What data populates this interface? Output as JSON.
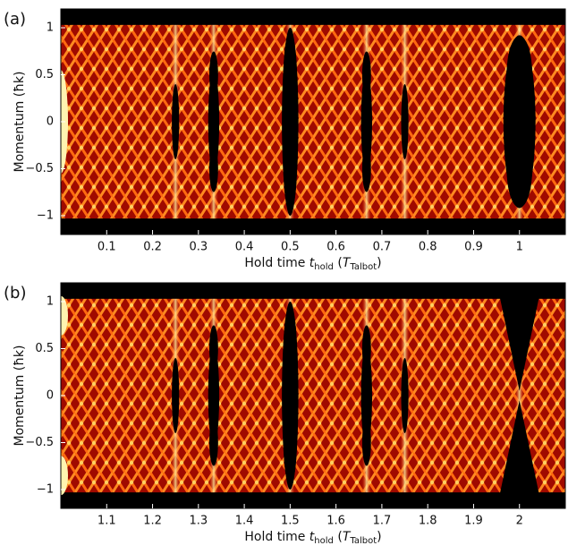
{
  "chart_data": [
    {
      "type": "heatmap",
      "panel_label": "(a)",
      "ylabel": "Momentum (ħk)",
      "xlabel": [
        "Hold time ",
        "t",
        "hold",
        " (",
        "T",
        "Talbot",
        ")"
      ],
      "xlim": [
        0,
        1.1
      ],
      "xticks": [
        0.1,
        0.2,
        0.3,
        0.4,
        0.5,
        0.6,
        0.7,
        0.8,
        0.9,
        1
      ],
      "ylim": [
        -1.2,
        1.2
      ],
      "yticks": [
        1,
        0.5,
        0,
        {
          "value": -0.5,
          "label": "−0.5"
        },
        {
          "value": -1,
          "label": "−1"
        }
      ],
      "colormap": "hot"
    },
    {
      "type": "heatmap",
      "panel_label": "(b)",
      "ylabel": "Momentum (ħk)",
      "xlabel": [
        "Hold time ",
        "t",
        "hold",
        " (",
        "T",
        "Talbot",
        ")"
      ],
      "xlim": [
        1,
        2.1
      ],
      "xticks": [
        1.1,
        1.2,
        1.3,
        1.4,
        1.5,
        1.6,
        1.7,
        1.8,
        1.9,
        2
      ],
      "ylim": [
        -1.2,
        1.2
      ],
      "yticks": [
        1,
        0.5,
        0,
        {
          "value": -0.5,
          "label": "−0.5"
        },
        {
          "value": -1,
          "label": "−1"
        }
      ],
      "colormap": "hot"
    }
  ]
}
